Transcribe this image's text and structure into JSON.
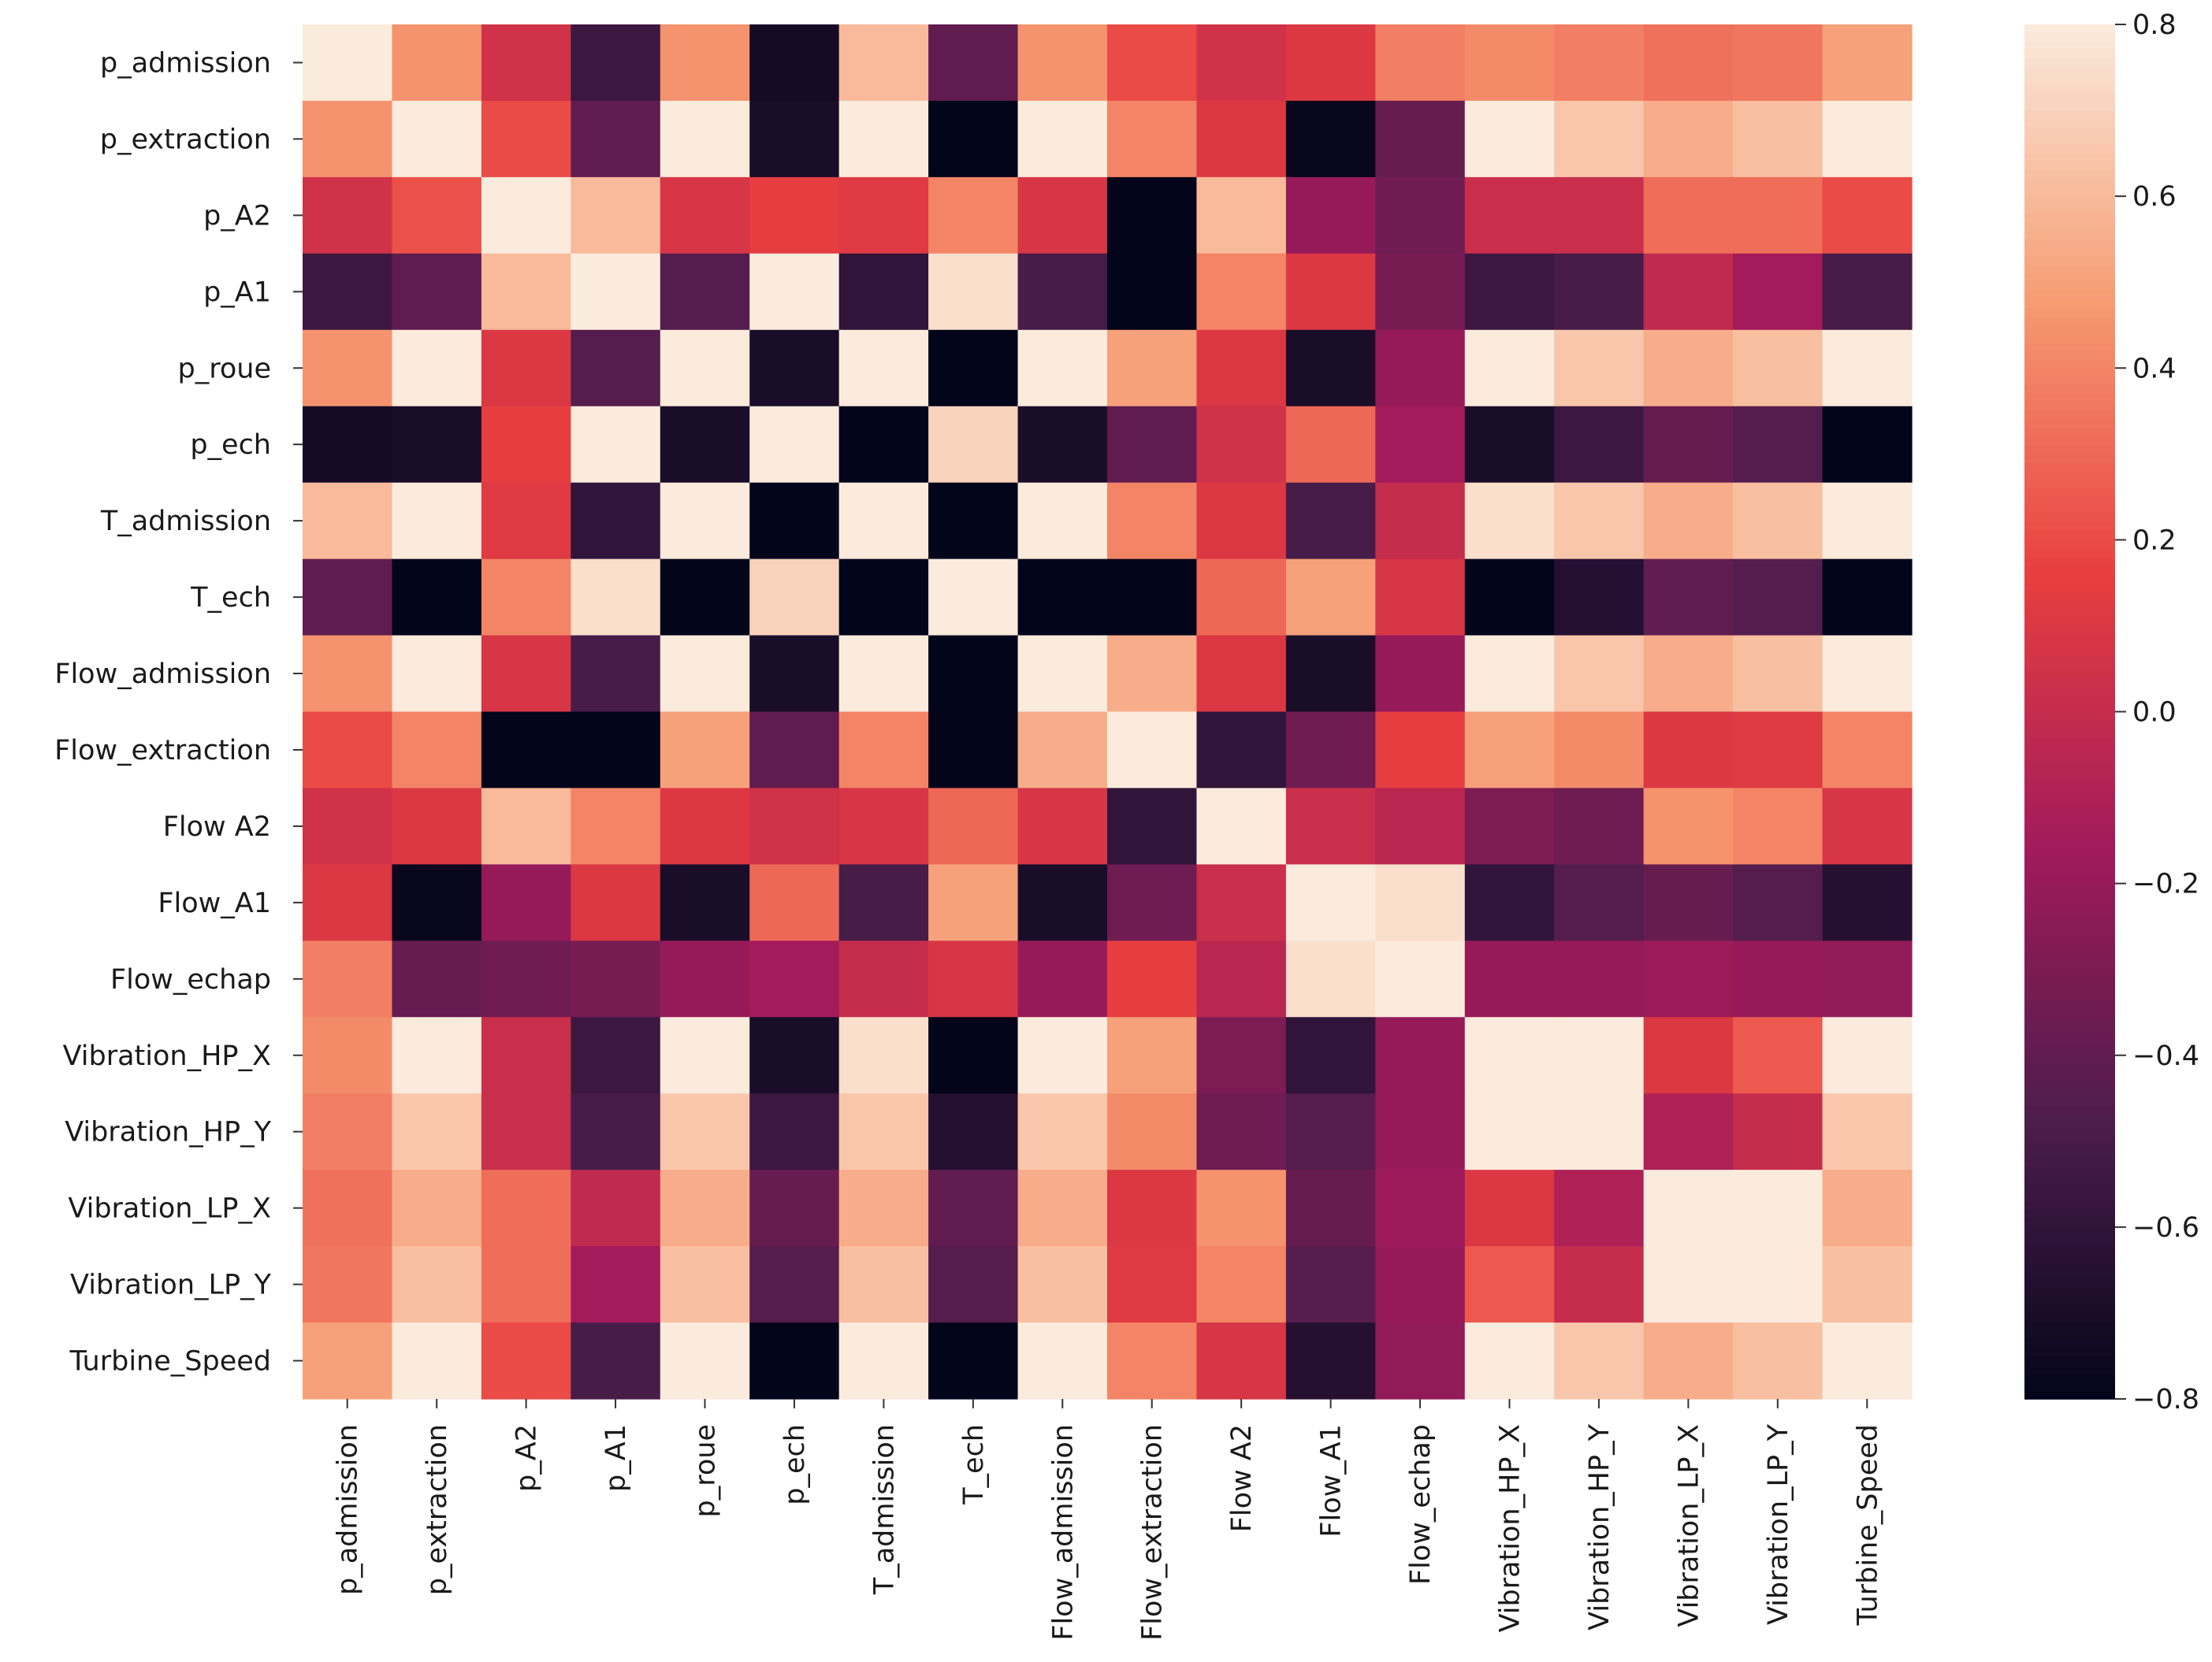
{
  "chart_data": {
    "type": "heatmap",
    "title": "",
    "xlabel": "",
    "ylabel": "",
    "row_labels": [
      "p_admission",
      "p_extraction",
      "p_A2",
      "p_A1",
      "p_roue",
      "p_ech",
      "T_admission",
      "T_ech",
      "Flow_admission",
      "Flow_extraction",
      "Flow A2",
      "Flow_A1",
      "Flow_echap",
      "Vibration_HP_X",
      "Vibration_HP_Y",
      "Vibration_LP_X",
      "Vibration_LP_Y",
      "Turbine_Speed"
    ],
    "col_labels": [
      "p_admission",
      "p_extraction",
      "p_A2",
      "p_A1",
      "p_roue",
      "p_ech",
      "T_admission",
      "T_ech",
      "Flow_admission",
      "Flow_extraction",
      "Flow A2",
      "Flow_A1",
      "Flow_echap",
      "Vibration_HP_X",
      "Vibration_HP_Y",
      "Vibration_LP_X",
      "Vibration_LP_Y",
      "Turbine_Speed"
    ],
    "values": [
      [
        0.8,
        0.45,
        0.05,
        -0.55,
        0.45,
        -0.72,
        0.6,
        -0.4,
        0.45,
        0.2,
        0.05,
        0.1,
        0.38,
        0.42,
        0.38,
        0.33,
        0.35,
        0.5
      ],
      [
        0.45,
        0.8,
        0.2,
        -0.4,
        0.8,
        -0.7,
        0.8,
        -0.8,
        0.8,
        0.4,
        0.1,
        -0.78,
        -0.38,
        0.8,
        0.65,
        0.55,
        0.62,
        0.8
      ],
      [
        0.05,
        0.22,
        0.8,
        0.6,
        0.08,
        0.15,
        0.12,
        0.4,
        0.08,
        -0.8,
        0.6,
        -0.2,
        -0.35,
        0.02,
        0.02,
        0.32,
        0.32,
        0.2
      ],
      [
        -0.55,
        -0.4,
        0.6,
        0.8,
        -0.45,
        0.8,
        -0.6,
        0.75,
        -0.5,
        -0.8,
        0.4,
        0.1,
        -0.32,
        -0.55,
        -0.5,
        -0.02,
        -0.15,
        -0.5
      ],
      [
        0.45,
        0.8,
        0.1,
        -0.45,
        0.8,
        -0.7,
        0.8,
        -0.8,
        0.8,
        0.5,
        0.1,
        -0.7,
        -0.2,
        0.8,
        0.65,
        0.55,
        0.62,
        0.8
      ],
      [
        -0.72,
        -0.7,
        0.15,
        0.8,
        -0.7,
        0.8,
        -0.8,
        0.7,
        -0.7,
        -0.4,
        0.05,
        0.3,
        -0.15,
        -0.7,
        -0.55,
        -0.38,
        -0.45,
        -0.8
      ],
      [
        0.6,
        0.8,
        0.12,
        -0.6,
        0.8,
        -0.8,
        0.8,
        -0.8,
        0.8,
        0.4,
        0.1,
        -0.5,
        0.0,
        0.75,
        0.65,
        0.55,
        0.62,
        0.8
      ],
      [
        -0.4,
        -0.8,
        0.4,
        0.75,
        -0.8,
        0.7,
        -0.8,
        0.8,
        -0.8,
        -0.8,
        0.3,
        0.5,
        0.08,
        -0.8,
        -0.65,
        -0.4,
        -0.45,
        -0.8
      ],
      [
        0.45,
        0.8,
        0.08,
        -0.5,
        0.8,
        -0.7,
        0.8,
        -0.8,
        0.8,
        0.55,
        0.1,
        -0.7,
        -0.2,
        0.8,
        0.65,
        0.55,
        0.62,
        0.8
      ],
      [
        0.2,
        0.4,
        -0.8,
        -0.8,
        0.5,
        -0.4,
        0.4,
        -0.8,
        0.55,
        0.8,
        -0.6,
        -0.35,
        0.15,
        0.5,
        0.42,
        0.1,
        0.12,
        0.4
      ],
      [
        0.05,
        0.1,
        0.6,
        0.4,
        0.1,
        0.05,
        0.08,
        0.3,
        0.08,
        -0.6,
        0.8,
        0.02,
        -0.05,
        -0.3,
        -0.35,
        0.45,
        0.4,
        0.08
      ],
      [
        0.1,
        -0.78,
        -0.2,
        0.1,
        -0.7,
        0.3,
        -0.5,
        0.5,
        -0.7,
        -0.35,
        0.02,
        0.8,
        0.75,
        -0.6,
        -0.45,
        -0.38,
        -0.45,
        -0.65
      ],
      [
        0.38,
        -0.38,
        -0.35,
        -0.32,
        -0.2,
        -0.15,
        0.0,
        0.08,
        -0.2,
        0.15,
        -0.05,
        0.75,
        0.8,
        -0.2,
        -0.2,
        -0.18,
        -0.2,
        -0.22
      ],
      [
        0.42,
        0.8,
        0.02,
        -0.55,
        0.8,
        -0.7,
        0.75,
        -0.8,
        0.8,
        0.5,
        -0.3,
        -0.6,
        -0.2,
        0.8,
        0.8,
        0.1,
        0.25,
        0.8
      ],
      [
        0.38,
        0.65,
        0.02,
        -0.5,
        0.65,
        -0.55,
        0.65,
        -0.65,
        0.65,
        0.42,
        -0.35,
        -0.45,
        -0.2,
        0.8,
        0.8,
        -0.1,
        0.0,
        0.65
      ],
      [
        0.33,
        0.55,
        0.32,
        -0.02,
        0.55,
        -0.38,
        0.55,
        -0.4,
        0.55,
        0.1,
        0.45,
        -0.38,
        -0.18,
        0.1,
        -0.1,
        0.8,
        0.8,
        0.55
      ],
      [
        0.35,
        0.62,
        0.32,
        -0.15,
        0.62,
        -0.45,
        0.62,
        -0.45,
        0.62,
        0.12,
        0.4,
        -0.45,
        -0.2,
        0.25,
        0.0,
        0.8,
        0.8,
        0.62
      ],
      [
        0.5,
        0.8,
        0.2,
        -0.5,
        0.8,
        -0.8,
        0.8,
        -0.8,
        0.8,
        0.4,
        0.08,
        -0.65,
        -0.22,
        0.8,
        0.65,
        0.55,
        0.62,
        0.8
      ]
    ],
    "colorbar": {
      "min": -0.8,
      "max": 0.8,
      "ticks": [
        0.8,
        0.6,
        0.4,
        0.2,
        0.0,
        -0.2,
        -0.4,
        -0.6,
        -0.8
      ],
      "tick_labels": [
        "0.8",
        "0.6",
        "0.4",
        "0.2",
        "0.0",
        "−0.2",
        "−0.4",
        "−0.6",
        "−0.8"
      ],
      "colormap": "rocket",
      "stops": [
        "#03051a",
        "#4c1d4b",
        "#a11a5b",
        "#e83f3f",
        "#f69c73",
        "#faebdd"
      ]
    },
    "grid": false,
    "legend": "colorbar-right"
  }
}
